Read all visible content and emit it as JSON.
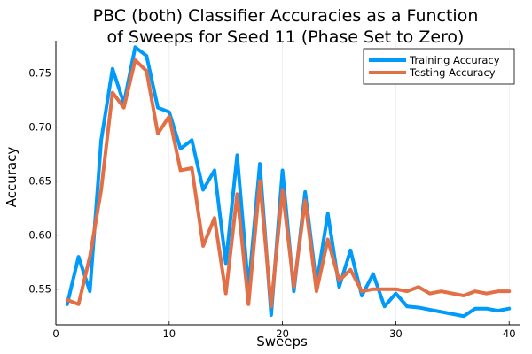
{
  "chart_data": {
    "type": "line",
    "title": "PBC (both) Classifier Accuracies as a Function",
    "subtitle": "of Sweeps for Seed 11 (Phase Set to Zero)",
    "xlabel": "Sweeps",
    "ylabel": "Accuracy",
    "xlim": [
      0,
      41
    ],
    "ylim": [
      0.517,
      0.78
    ],
    "x_ticks": [
      0,
      10,
      20,
      30,
      40
    ],
    "y_ticks": [
      0.55,
      0.6,
      0.65,
      0.7,
      0.75
    ],
    "x_tick_labels": [
      "0",
      "10",
      "20",
      "30",
      "40"
    ],
    "y_tick_labels": [
      "0.55",
      "0.60",
      "0.65",
      "0.70",
      "0.75"
    ],
    "grid": true,
    "legend_position": "top-right",
    "x": [
      1,
      2,
      3,
      4,
      5,
      6,
      7,
      8,
      9,
      10,
      11,
      12,
      13,
      14,
      15,
      16,
      17,
      18,
      19,
      20,
      21,
      22,
      23,
      24,
      25,
      26,
      27,
      28,
      29,
      30,
      31,
      32,
      33,
      34,
      35,
      36,
      37,
      38,
      39,
      40
    ],
    "series": [
      {
        "name": "Training Accuracy",
        "color": "#009AFA",
        "values": [
          0.536,
          0.58,
          0.548,
          0.688,
          0.754,
          0.722,
          0.774,
          0.766,
          0.718,
          0.714,
          0.68,
          0.688,
          0.642,
          0.66,
          0.574,
          0.674,
          0.55,
          0.666,
          0.526,
          0.66,
          0.548,
          0.64,
          0.554,
          0.62,
          0.552,
          0.586,
          0.544,
          0.564,
          0.534,
          0.546,
          0.534,
          0.533,
          0.531,
          0.529,
          0.527,
          0.525,
          0.532,
          0.532,
          0.53,
          0.532
        ]
      },
      {
        "name": "Testing Accuracy",
        "color": "#E26F46",
        "values": [
          0.54,
          0.536,
          0.58,
          0.642,
          0.732,
          0.718,
          0.762,
          0.752,
          0.694,
          0.71,
          0.66,
          0.662,
          0.59,
          0.616,
          0.546,
          0.638,
          0.536,
          0.65,
          0.534,
          0.642,
          0.552,
          0.632,
          0.548,
          0.596,
          0.558,
          0.568,
          0.548,
          0.55,
          0.55,
          0.55,
          0.548,
          0.552,
          0.546,
          0.548,
          0.546,
          0.544,
          0.548,
          0.546,
          0.548,
          0.548
        ]
      }
    ]
  }
}
